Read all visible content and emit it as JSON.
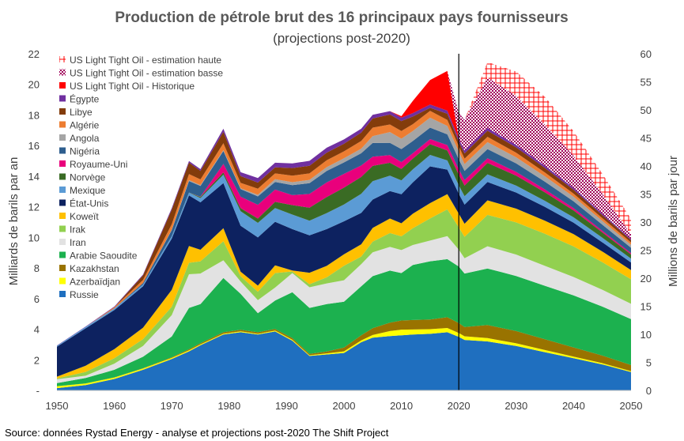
{
  "chart_data": {
    "type": "area",
    "title": "Production de pétrole brut des 16 principaux pays fournisseurs",
    "subtitle": "(projections post-2020)",
    "ylabel": "Milliards de barils par an",
    "y2label": "Millions de barils par jour",
    "source": "Source: données Rystad Energy - analyse et projections post-2020 The Shift Project",
    "xlim": [
      1950,
      2050
    ],
    "ylim": [
      0,
      22
    ],
    "y2lim": [
      0,
      60
    ],
    "xticks": [
      1950,
      1960,
      1970,
      1980,
      1990,
      2000,
      2010,
      2020,
      2030,
      2040,
      2050
    ],
    "yticks": [
      0,
      2,
      4,
      6,
      8,
      10,
      12,
      14,
      16,
      18,
      20,
      22
    ],
    "y2ticks": [
      0,
      5,
      10,
      15,
      20,
      25,
      30,
      35,
      40,
      45,
      50,
      55,
      60
    ],
    "divider_year": 2020,
    "stacked": true,
    "x": [
      1950,
      1955,
      1960,
      1965,
      1970,
      1973,
      1975,
      1979,
      1982,
      1985,
      1988,
      1991,
      1994,
      1997,
      2000,
      2003,
      2005,
      2008,
      2010,
      2012,
      2015,
      2018,
      2020,
      2021,
      2025,
      2030,
      2035,
      2040,
      2045,
      2050
    ],
    "series": [
      {
        "name": "Russie",
        "color": "#1f6fbf",
        "values": [
          0.15,
          0.35,
          0.75,
          1.35,
          2.05,
          2.55,
          2.95,
          3.65,
          3.8,
          3.65,
          3.85,
          3.25,
          2.25,
          2.35,
          2.45,
          3.15,
          3.45,
          3.55,
          3.6,
          3.65,
          3.7,
          3.8,
          3.5,
          3.3,
          3.2,
          2.9,
          2.5,
          2.1,
          1.7,
          1.2
        ]
      },
      {
        "name": "Azerbaïdjan",
        "color": "#ffff00",
        "values": [
          0.12,
          0.1,
          0.09,
          0.08,
          0.07,
          0.07,
          0.06,
          0.06,
          0.06,
          0.05,
          0.06,
          0.06,
          0.05,
          0.07,
          0.1,
          0.12,
          0.17,
          0.33,
          0.37,
          0.33,
          0.3,
          0.28,
          0.25,
          0.24,
          0.22,
          0.18,
          0.14,
          0.11,
          0.08,
          0.06
        ]
      },
      {
        "name": "Kazakhstan",
        "color": "#997300",
        "values": [
          0.01,
          0.01,
          0.01,
          0.02,
          0.05,
          0.07,
          0.08,
          0.09,
          0.1,
          0.1,
          0.11,
          0.11,
          0.09,
          0.12,
          0.25,
          0.33,
          0.45,
          0.55,
          0.6,
          0.62,
          0.64,
          0.7,
          0.65,
          0.6,
          0.85,
          0.8,
          0.7,
          0.6,
          0.5,
          0.4
        ]
      },
      {
        "name": "Arabie Saoudite",
        "color": "#1cb14f",
        "values": [
          0.2,
          0.35,
          0.5,
          0.75,
          1.35,
          2.7,
          2.55,
          3.55,
          2.35,
          1.25,
          1.85,
          3.0,
          3.0,
          3.1,
          3.0,
          3.2,
          3.4,
          3.4,
          3.1,
          3.6,
          3.8,
          3.8,
          3.7,
          3.5,
          3.7,
          3.6,
          3.5,
          3.4,
          3.2,
          3.0
        ]
      },
      {
        "name": "Iran",
        "color": "#e2e2e2",
        "values": [
          0.25,
          0.15,
          0.4,
          0.7,
          1.4,
          2.2,
          2.0,
          1.15,
          0.8,
          0.85,
          0.85,
          1.25,
          1.35,
          1.35,
          1.4,
          1.45,
          1.55,
          1.55,
          1.5,
          1.3,
          1.35,
          1.5,
          1.1,
          1.0,
          1.45,
          1.4,
          1.3,
          1.2,
          1.1,
          1.0
        ]
      },
      {
        "name": "Irak",
        "color": "#92d050",
        "values": [
          0.05,
          0.25,
          0.35,
          0.45,
          0.55,
          0.75,
          0.8,
          1.25,
          0.35,
          0.55,
          0.95,
          0.1,
          0.2,
          0.4,
          0.95,
          0.5,
          0.7,
          0.9,
          0.9,
          1.1,
          1.45,
          1.75,
          1.45,
          1.4,
          2.05,
          2.1,
          2.1,
          2.0,
          1.8,
          1.6
        ]
      },
      {
        "name": "Koweït",
        "color": "#ffc000",
        "values": [
          0.12,
          0.4,
          0.6,
          0.75,
          1.1,
          1.1,
          0.75,
          0.85,
          0.3,
          0.4,
          0.5,
          0.07,
          0.75,
          0.75,
          0.75,
          0.8,
          0.9,
          0.95,
          0.85,
          0.95,
          1.0,
          1.0,
          0.9,
          0.85,
          0.95,
          0.9,
          0.85,
          0.8,
          0.7,
          0.6
        ]
      },
      {
        "name": "État-Unis",
        "color": "#0d2260",
        "values": [
          1.95,
          2.45,
          2.55,
          2.7,
          3.35,
          3.3,
          3.1,
          2.95,
          3.0,
          3.15,
          2.85,
          2.7,
          2.45,
          2.4,
          2.15,
          2.05,
          1.85,
          1.8,
          1.9,
          2.05,
          2.4,
          1.6,
          1.3,
          1.25,
          1.2,
          1.05,
          0.9,
          0.75,
          0.6,
          0.5
        ]
      },
      {
        "name": "Mexique",
        "color": "#5b9bd5",
        "values": [
          0.07,
          0.09,
          0.1,
          0.12,
          0.16,
          0.18,
          0.28,
          0.55,
          0.95,
          0.95,
          0.9,
          0.95,
          0.95,
          1.05,
          1.1,
          1.25,
          1.2,
          1.0,
          0.9,
          0.85,
          0.75,
          0.6,
          0.55,
          0.55,
          0.5,
          0.45,
          0.4,
          0.35,
          0.3,
          0.25
        ]
      },
      {
        "name": "Norvège",
        "color": "#3a6b24",
        "values": [
          0.0,
          0.0,
          0.0,
          0.0,
          0.0,
          0.01,
          0.07,
          0.15,
          0.2,
          0.28,
          0.4,
          0.62,
          0.85,
          1.05,
          1.1,
          1.1,
          1.0,
          0.85,
          0.75,
          0.7,
          0.7,
          0.65,
          0.7,
          0.7,
          0.75,
          0.65,
          0.55,
          0.45,
          0.35,
          0.28
        ]
      },
      {
        "name": "Royaume-Uni",
        "color": "#e9007c",
        "values": [
          0.0,
          0.0,
          0.0,
          0.0,
          0.0,
          0.0,
          0.02,
          0.55,
          0.75,
          0.9,
          0.8,
          0.65,
          0.9,
          0.95,
          0.9,
          0.75,
          0.6,
          0.5,
          0.45,
          0.35,
          0.33,
          0.35,
          0.35,
          0.35,
          0.3,
          0.25,
          0.2,
          0.15,
          0.1,
          0.08
        ]
      },
      {
        "name": "Nigéria",
        "color": "#2e5e8e",
        "values": [
          0.0,
          0.0,
          0.01,
          0.1,
          0.4,
          0.75,
          0.7,
          0.85,
          0.5,
          0.55,
          0.5,
          0.65,
          0.7,
          0.75,
          0.75,
          0.8,
          0.9,
          0.8,
          0.85,
          0.8,
          0.75,
          0.7,
          0.65,
          0.6,
          0.6,
          0.55,
          0.5,
          0.45,
          0.4,
          0.35
        ]
      },
      {
        "name": "Angola",
        "color": "#a5a5a5",
        "values": [
          0.0,
          0.0,
          0.0,
          0.0,
          0.03,
          0.06,
          0.05,
          0.05,
          0.05,
          0.1,
          0.18,
          0.2,
          0.22,
          0.25,
          0.27,
          0.3,
          0.45,
          0.7,
          0.68,
          0.65,
          0.65,
          0.55,
          0.5,
          0.45,
          0.45,
          0.4,
          0.35,
          0.3,
          0.25,
          0.2
        ]
      },
      {
        "name": "Algérie",
        "color": "#ed7d31",
        "values": [
          0.0,
          0.0,
          0.08,
          0.2,
          0.35,
          0.4,
          0.38,
          0.45,
          0.35,
          0.4,
          0.38,
          0.42,
          0.42,
          0.45,
          0.45,
          0.5,
          0.55,
          0.5,
          0.5,
          0.45,
          0.45,
          0.4,
          0.35,
          0.35,
          0.35,
          0.3,
          0.25,
          0.2,
          0.18,
          0.15
        ]
      },
      {
        "name": "Libye",
        "color": "#833c0b",
        "values": [
          0.0,
          0.0,
          0.0,
          0.3,
          0.95,
          0.75,
          0.55,
          0.75,
          0.45,
          0.4,
          0.4,
          0.5,
          0.5,
          0.5,
          0.5,
          0.55,
          0.6,
          0.65,
          0.65,
          0.5,
          0.2,
          0.4,
          0.3,
          0.35,
          0.4,
          0.35,
          0.3,
          0.25,
          0.2,
          0.15
        ]
      },
      {
        "name": "Égypte",
        "color": "#7030a0",
        "values": [
          0.02,
          0.03,
          0.04,
          0.05,
          0.1,
          0.1,
          0.12,
          0.2,
          0.25,
          0.3,
          0.3,
          0.3,
          0.32,
          0.32,
          0.28,
          0.25,
          0.24,
          0.22,
          0.22,
          0.22,
          0.21,
          0.2,
          0.2,
          0.19,
          0.18,
          0.16,
          0.14,
          0.12,
          0.1,
          0.08
        ]
      },
      {
        "name": "US Light Tight Oil - Historique",
        "color": "#ff0000",
        "values": [
          0,
          0,
          0,
          0,
          0,
          0,
          0,
          0,
          0,
          0,
          0,
          0,
          0,
          0,
          0,
          0,
          0,
          0,
          0.1,
          0.8,
          1.6,
          2.6,
          0,
          0,
          0,
          0,
          0,
          0,
          0,
          0
        ]
      },
      {
        "name": "US Light Tight Oil - estimation basse",
        "color": "#a0005a",
        "values": [
          0,
          0,
          0,
          0,
          0,
          0,
          0,
          0,
          0,
          0,
          0,
          0,
          0,
          0,
          0,
          0,
          0,
          0,
          0,
          0,
          0,
          0,
          1.7,
          2.0,
          3.3,
          3.2,
          2.7,
          2.1,
          1.3,
          0.3
        ]
      },
      {
        "name": "US Light Tight Oil - estimation haute",
        "color": "#ff0000",
        "values": [
          0,
          0,
          0,
          0,
          0,
          0,
          0,
          0,
          0,
          0,
          0,
          0,
          0,
          0,
          0,
          0,
          0,
          0,
          0,
          0,
          0,
          0,
          0,
          0,
          1.0,
          1.6,
          1.8,
          1.6,
          1.3,
          1.0
        ]
      }
    ]
  }
}
